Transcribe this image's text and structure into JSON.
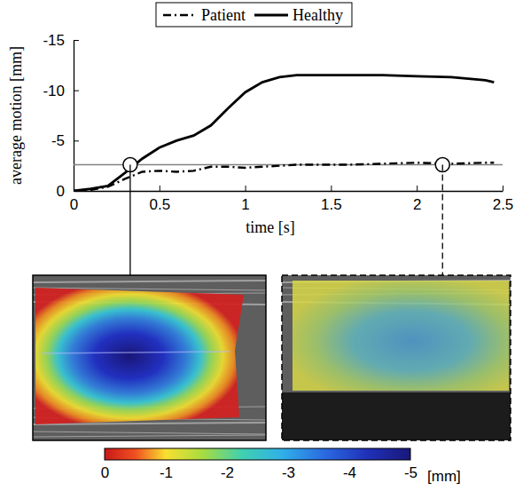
{
  "chart_data": {
    "type": "line",
    "xlabel": "time [s]",
    "ylabel": "average motion [mm]",
    "legend": "top",
    "x": [
      0,
      0.1,
      0.2,
      0.3,
      0.4,
      0.5,
      0.6,
      0.7,
      0.8,
      0.9,
      1.0,
      1.1,
      1.2,
      1.3,
      1.4,
      1.6,
      1.8,
      2.0,
      2.2,
      2.4,
      2.45
    ],
    "series": [
      {
        "name": "Patient",
        "color": "#000000",
        "line_style": "dashed",
        "values": [
          0,
          -0.1,
          -0.4,
          -1.2,
          -1.9,
          -2.0,
          -1.9,
          -2.0,
          -2.4,
          -2.4,
          -2.3,
          -2.4,
          -2.5,
          -2.6,
          -2.6,
          -2.6,
          -2.7,
          -2.8,
          -2.7,
          -2.8,
          -2.8
        ]
      },
      {
        "name": "Healthy",
        "color": "#000000",
        "line_style": "solid",
        "values": [
          0,
          -0.2,
          -0.5,
          -1.8,
          -3.2,
          -4.3,
          -5.0,
          -5.5,
          -6.5,
          -8.2,
          -9.8,
          -10.8,
          -11.3,
          -11.5,
          -11.5,
          -11.5,
          -11.5,
          -11.4,
          -11.3,
          -11.0,
          -10.8
        ]
      }
    ],
    "xlim": [
      0,
      2.5
    ],
    "xticks": [
      0,
      0.5,
      1,
      1.5,
      2,
      2.5
    ],
    "ylim": [
      0,
      -15
    ],
    "yticks": [
      0,
      -5,
      -10,
      -15
    ],
    "reference_line": -2.6,
    "highlight_points": {
      "x": [
        0.33,
        2.15
      ],
      "y": [
        -2.6,
        -2.6
      ]
    },
    "colorbar": {
      "range": [
        0,
        -5
      ],
      "ticks": [
        0,
        -1,
        -2,
        -3,
        -4,
        -5
      ],
      "label": "[mm]"
    }
  }
}
